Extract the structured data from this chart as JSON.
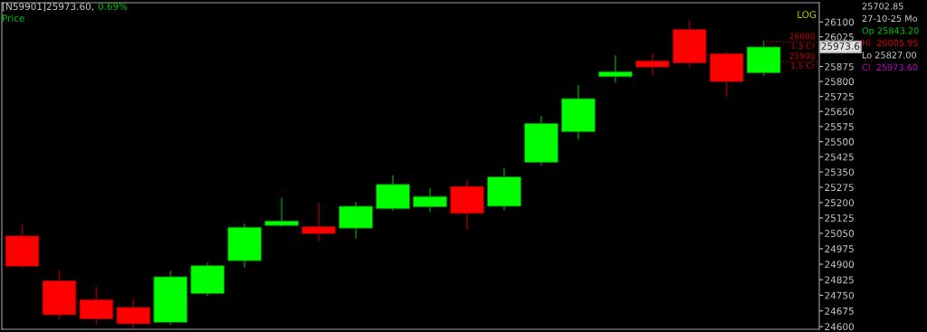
{
  "chart_data": {
    "type": "candlestick",
    "title": "[N59901]25973.60,",
    "subtitle": "0.69%",
    "categories": [
      null,
      null,
      null,
      null,
      null,
      null,
      null,
      null,
      null,
      null,
      null,
      null,
      null,
      null,
      null,
      null,
      null,
      null,
      null,
      null,
      null
    ],
    "ohlc": [
      [
        25037,
        25092,
        24881,
        24890
      ],
      [
        24820,
        24871,
        24632,
        24656
      ],
      [
        24729,
        24791,
        24608,
        24636
      ],
      [
        24692,
        24733,
        24589,
        24613
      ],
      [
        24620,
        24868,
        24608,
        24839
      ],
      [
        24758,
        24907,
        24747,
        24893
      ],
      [
        24917,
        25097,
        24884,
        25079
      ],
      [
        25088,
        25223,
        25082,
        25110
      ],
      [
        25082,
        25196,
        25011,
        25048
      ],
      [
        25075,
        25203,
        25026,
        25182
      ],
      [
        25170,
        25334,
        25160,
        25289
      ],
      [
        25179,
        25270,
        25155,
        25230
      ],
      [
        25279,
        25311,
        25066,
        25147
      ],
      [
        25182,
        25369,
        25163,
        25326
      ],
      [
        25398,
        25629,
        25383,
        25590
      ],
      [
        25549,
        25782,
        25511,
        25714
      ],
      [
        25824,
        25931,
        25794,
        25849
      ],
      [
        25904,
        25939,
        25832,
        25872
      ],
      [
        26062,
        26108,
        25869,
        25893
      ],
      [
        25940,
        25950,
        25723,
        25799
      ],
      [
        25843.2,
        26005.95,
        25827,
        25973.6
      ]
    ],
    "colors": [
      "#ff0000",
      "#ff0000",
      "#ff0000",
      "#ff0000",
      "#00ff00",
      "#00ff00",
      "#00ff00",
      "#00ff00",
      "#ff0000",
      "#00ff00",
      "#00ff00",
      "#00ff00",
      "#ff0000",
      "#00ff00",
      "#00ff00",
      "#00ff00",
      "#00ff00",
      "#ff0000",
      "#ff0000",
      "#ff0000",
      "#00ff00"
    ],
    "log": true,
    "ylim": [
      24587,
      26198
    ],
    "yticks": [
      24600,
      24675,
      24750,
      24825,
      24900,
      24975,
      25050,
      25125,
      25200,
      25275,
      25350,
      25425,
      25500,
      25575,
      25650,
      25725,
      25800,
      25875,
      26025,
      26100
    ],
    "grid": false,
    "ref_lines": [
      {
        "axis": "y",
        "value": 26000,
        "label": "26000\n1.3 Cr",
        "color": "#c00000",
        "line_style": "dotted"
      },
      {
        "axis": "y",
        "value": 25900,
        "label": "25900\n1.5 Cr",
        "color": "#c00000",
        "line_style": "dotted"
      }
    ],
    "annotations": [
      "Price",
      "LOG",
      "25973.6",
      "25702.85",
      "27-10-25 Mo",
      "Op 25843.20",
      "Hi  26005.95",
      "Lo 25827.00",
      "Cl  25973.60"
    ]
  }
}
